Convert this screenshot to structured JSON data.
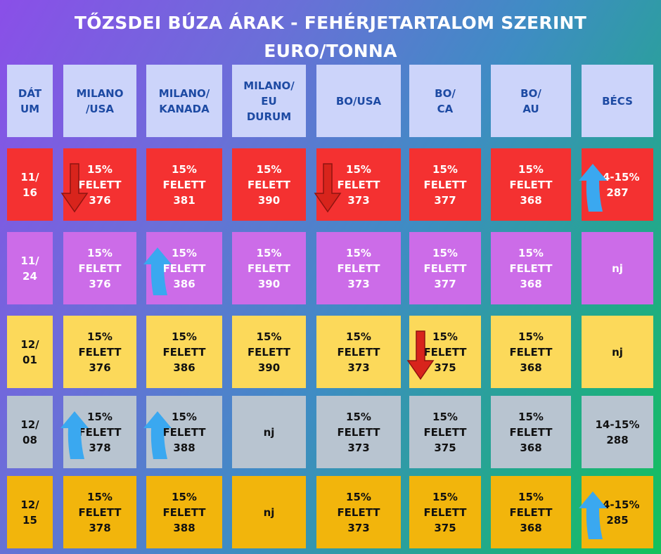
{
  "title_line1": "TŐZSDEI BÚZA ÁRAK - FEHÉRJETARTALOM SZERINT",
  "title_line2": "EURO/TONNA",
  "colors": {
    "header": "#ccd4fa",
    "header_text": "#1d4aa3",
    "row_11_16": "#f43131",
    "row_11_24": "#cc6ce8",
    "row_12_01": "#fcd95a",
    "row_12_08": "#b8c4d0",
    "row_12_15": "#f2b50c",
    "arrow_up": "#3aa8f0",
    "arrow_down": "#d8241c"
  },
  "headers": [
    "DÁT\nUM",
    "MILANO\n/USA",
    "MILANO/\nKANADA",
    "MILANO/\nEU\nDURUM",
    "BO/USA",
    "BO/\nCA",
    "BO/\nAU",
    "BÉCS"
  ],
  "rows": [
    {
      "date": "11/\n16",
      "cells": [
        "15%\nFELETT\n376",
        "15%\nFELETT\n381",
        "15%\nFELETT\n390",
        "15%\nFELETT\n373",
        "15%\nFELETT\n377",
        "15%\nFELETT\n368",
        "14-15%\n287"
      ],
      "arrows": [
        "down-arrow-icon",
        "",
        "",
        "down-arrow-icon",
        "",
        "",
        "up-arrow-icon"
      ]
    },
    {
      "date": "11/\n24",
      "cells": [
        "15%\nFELETT\n376",
        "15%\nFELETT\n386",
        "15%\nFELETT\n390",
        "15%\nFELETT\n373",
        "15%\nFELETT\n377",
        "15%\nFELETT\n368",
        "nj"
      ],
      "arrows": [
        "",
        "up-arrow-icon",
        "",
        "",
        "",
        "",
        ""
      ]
    },
    {
      "date": "12/\n01",
      "cells": [
        "15%\nFELETT\n376",
        "15%\nFELETT\n386",
        "15%\nFELETT\n390",
        "15%\nFELETT\n373",
        "15%\nFELETT\n375",
        "15%\nFELETT\n368",
        "nj"
      ],
      "arrows": [
        "",
        "",
        "",
        "",
        "down-arrow-icon",
        "",
        ""
      ]
    },
    {
      "date": "12/\n08",
      "cells": [
        "15%\nFELETT\n378",
        "15%\nFELETT\n388",
        "nj",
        "15%\nFELETT\n373",
        "15%\nFELETT\n375",
        "15%\nFELETT\n368",
        "14-15%\n288"
      ],
      "arrows": [
        "up-arrow-icon",
        "up-arrow-icon",
        "",
        "",
        "",
        "",
        ""
      ]
    },
    {
      "date": "12/\n15",
      "cells": [
        "15%\nFELETT\n378",
        "15%\nFELETT\n388",
        "nj",
        "15%\nFELETT\n373",
        "15%\nFELETT\n375",
        "15%\nFELETT\n368",
        "14-15%\n285"
      ],
      "arrows": [
        "",
        "",
        "",
        "",
        "",
        "",
        "up-arrow-icon"
      ]
    }
  ]
}
